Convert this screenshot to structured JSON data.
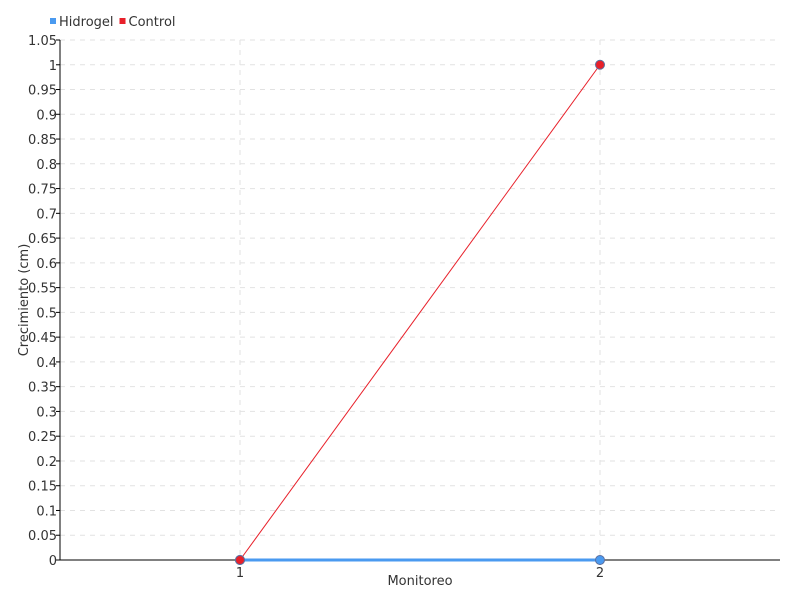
{
  "chart_data": {
    "type": "line",
    "title": "",
    "xlabel": "Monitoreo",
    "ylabel": "Crecimiento (cm)",
    "x": [
      1,
      2
    ],
    "x_tick_labels": [
      "1",
      "2"
    ],
    "xlim": [
      0.5,
      2.5
    ],
    "ylim": [
      0,
      1.05
    ],
    "y_ticks": [
      "0",
      "0.05",
      "0.1",
      "0.15",
      "0.2",
      "0.25",
      "0.3",
      "0.35",
      "0.4",
      "0.45",
      "0.5",
      "0.55",
      "0.6",
      "0.65",
      "0.7",
      "0.75",
      "0.8",
      "0.85",
      "0.9",
      "0.95",
      "1",
      "1.05"
    ],
    "grid": true,
    "legend_position": "top-left",
    "series": [
      {
        "name": "Hidrogel",
        "values": [
          0,
          0
        ],
        "color": "#4a9af0"
      },
      {
        "name": "Control",
        "values": [
          0,
          1
        ],
        "color": "#e8202a"
      }
    ]
  }
}
